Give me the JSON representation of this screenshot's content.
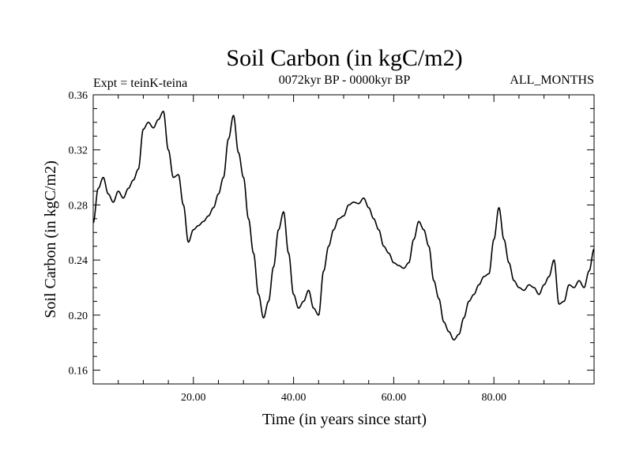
{
  "chart_data": {
    "type": "line",
    "title": "Soil Carbon (in kgC/m2)",
    "subtitle_left": "Expt = teinK-teina",
    "subtitle_center": "0072kyr BP - 0000kyr BP",
    "subtitle_right": "ALL_MONTHS",
    "xlabel": "Time (in years since start)",
    "ylabel": "Soil Carbon (in kgC/m2)",
    "xlim": [
      0,
      100
    ],
    "ylim": [
      0.15,
      0.36
    ],
    "xticks": [
      20,
      40,
      60,
      80
    ],
    "xtick_labels": [
      "20.00",
      "40.00",
      "60.00",
      "80.00"
    ],
    "yticks": [
      0.16,
      0.2,
      0.24,
      0.28,
      0.32,
      0.36
    ],
    "ytick_labels": [
      "0.16",
      "0.20",
      "0.24",
      "0.28",
      "0.32",
      "0.36"
    ],
    "series": [
      {
        "name": "Soil Carbon",
        "color": "#000000",
        "x": [
          0,
          1,
          2,
          3,
          4,
          5,
          6,
          7,
          8,
          9,
          10,
          11,
          12,
          13,
          14,
          15,
          16,
          17,
          18,
          19,
          20,
          21,
          22,
          23,
          24,
          25,
          26,
          27,
          28,
          29,
          30,
          31,
          32,
          33,
          34,
          35,
          36,
          37,
          38,
          39,
          40,
          41,
          42,
          43,
          44,
          45,
          46,
          47,
          48,
          49,
          50,
          51,
          52,
          53,
          54,
          55,
          56,
          57,
          58,
          59,
          60,
          61,
          62,
          63,
          64,
          65,
          66,
          67,
          68,
          69,
          70,
          71,
          72,
          73,
          74,
          75,
          76,
          77,
          78,
          79,
          80,
          81,
          82,
          83,
          84,
          85,
          86,
          87,
          88,
          89,
          90,
          91,
          92,
          93,
          94,
          95,
          96,
          97,
          98,
          99,
          100
        ],
        "values": [
          0.267,
          0.292,
          0.3,
          0.288,
          0.282,
          0.29,
          0.285,
          0.292,
          0.298,
          0.306,
          0.335,
          0.34,
          0.336,
          0.342,
          0.348,
          0.32,
          0.3,
          0.302,
          0.28,
          0.253,
          0.262,
          0.265,
          0.268,
          0.272,
          0.278,
          0.288,
          0.3,
          0.328,
          0.345,
          0.318,
          0.3,
          0.27,
          0.245,
          0.215,
          0.198,
          0.21,
          0.235,
          0.262,
          0.275,
          0.245,
          0.215,
          0.205,
          0.21,
          0.218,
          0.205,
          0.2,
          0.232,
          0.25,
          0.262,
          0.27,
          0.272,
          0.28,
          0.282,
          0.281,
          0.285,
          0.278,
          0.27,
          0.262,
          0.25,
          0.245,
          0.238,
          0.236,
          0.234,
          0.238,
          0.255,
          0.268,
          0.262,
          0.25,
          0.225,
          0.212,
          0.195,
          0.188,
          0.182,
          0.186,
          0.198,
          0.21,
          0.215,
          0.222,
          0.228,
          0.23,
          0.255,
          0.278,
          0.255,
          0.238,
          0.225,
          0.22,
          0.218,
          0.222,
          0.22,
          0.215,
          0.222,
          0.228,
          0.24,
          0.208,
          0.21,
          0.222,
          0.22,
          0.225,
          0.22,
          0.232,
          0.248
        ]
      }
    ]
  }
}
